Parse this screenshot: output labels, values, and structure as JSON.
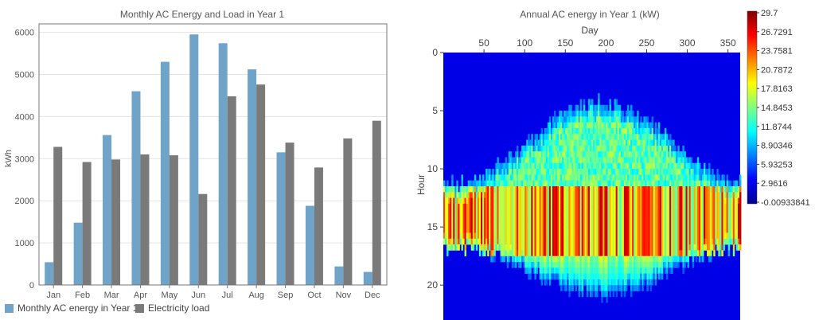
{
  "chart_data": [
    {
      "type": "bar",
      "title": "Monthly AC Energy and Load in Year 1",
      "xlabel": "",
      "ylabel": "kWh",
      "ylim": [
        0,
        6200
      ],
      "yticks": [
        0,
        1000,
        2000,
        3000,
        4000,
        5000,
        6000
      ],
      "grid": true,
      "legend_position": "bottom-left",
      "categories": [
        "Jan",
        "Feb",
        "Mar",
        "Apr",
        "May",
        "Jun",
        "Jul",
        "Aug",
        "Sep",
        "Oct",
        "Nov",
        "Dec"
      ],
      "series": [
        {
          "name": "Monthly AC energy in Year 1",
          "color": "#6fa3c8",
          "values": [
            540,
            1480,
            3560,
            4600,
            5300,
            5950,
            5740,
            5120,
            3150,
            1880,
            440,
            310
          ]
        },
        {
          "name": "Electricity load",
          "color": "#7a7a7a",
          "values": [
            3280,
            2920,
            2980,
            3100,
            3080,
            2160,
            4480,
            4760,
            3380,
            2790,
            3480,
            3900
          ]
        }
      ]
    },
    {
      "type": "heatmap",
      "title": "Annual AC energy in Year 1 (kW)",
      "xlabel": "Day",
      "ylabel": "Hour",
      "xlim": [
        0,
        365
      ],
      "ylim": [
        0,
        23
      ],
      "xticks": [
        50,
        100,
        150,
        200,
        250,
        300,
        350
      ],
      "yticks": [
        0,
        5,
        10,
        15,
        20
      ],
      "x_axis_position": "top",
      "colorbar": {
        "min": -0.00933841,
        "max": 29.7,
        "tick_labels": [
          "29.7",
          "26.7291",
          "23.7581",
          "20.7872",
          "17.8163",
          "14.8453",
          "11.8744",
          "8.90346",
          "5.93253",
          "2.9616",
          "-0.00933841"
        ],
        "colormap": "jet"
      },
      "pattern": {
        "description": "Daily hourly AC output; production roughly hours 4-21, longest around mid-year, peak output (~25-29 kW) around hours 12-17",
        "sunrise_winter": 11.5,
        "sunrise_summer": 4.5,
        "sunset_winter": 16.5,
        "sunset_summer": 20.5,
        "peak_value": 29.7
      }
    }
  ]
}
